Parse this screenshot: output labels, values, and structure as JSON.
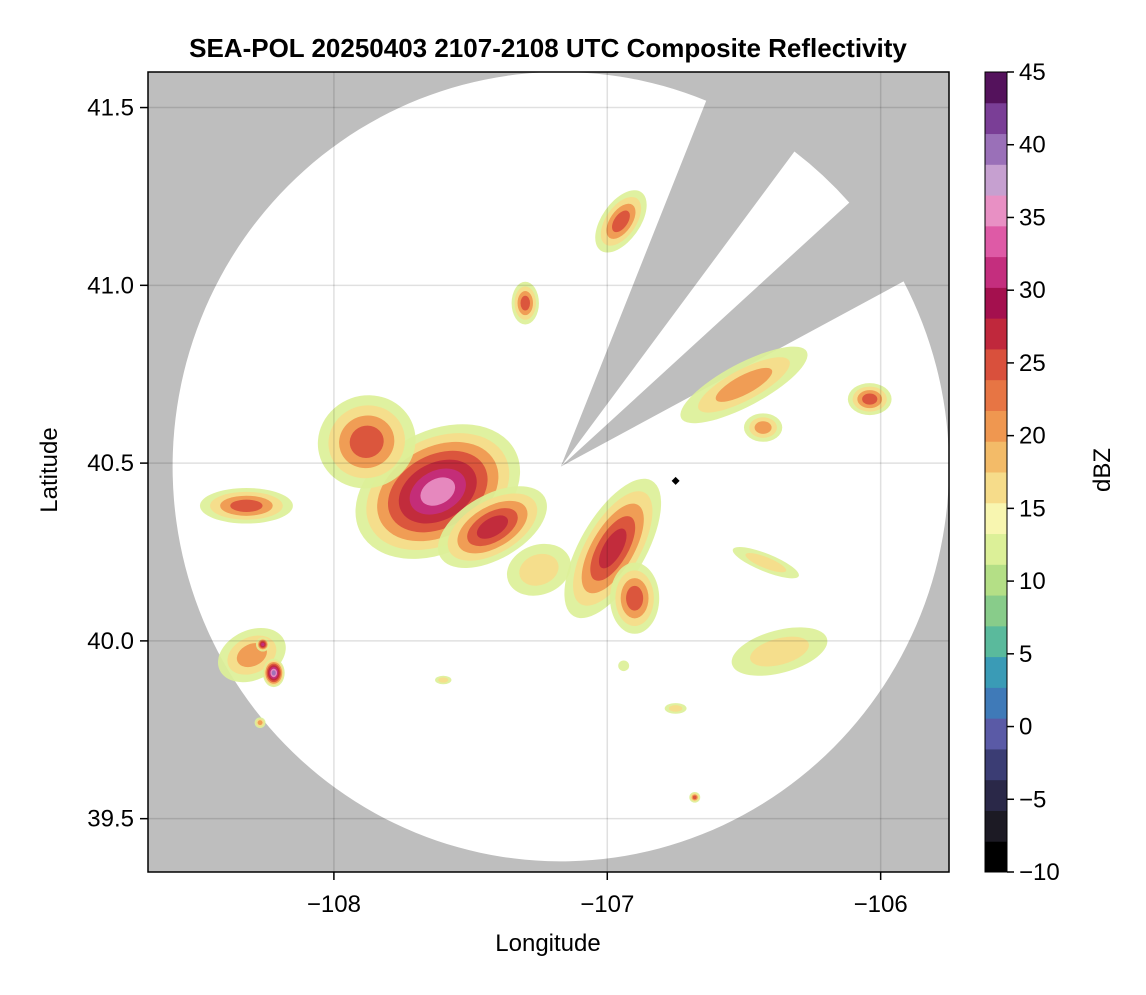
{
  "chart_data": {
    "type": "heatmap",
    "title": "SEA-POL 20250403 2107-2108 UTC Composite Reflectivity",
    "xlabel": "Longitude",
    "ylabel": "Latitude",
    "xlim": [
      -108.68,
      -105.75
    ],
    "ylim": [
      39.35,
      41.6
    ],
    "x_ticks": [
      -108,
      -107,
      -106
    ],
    "x_tick_labels": [
      "−108",
      "−107",
      "−106"
    ],
    "y_ticks": [
      39.5,
      40.0,
      40.5,
      41.0,
      41.5
    ],
    "y_tick_labels": [
      "39.5",
      "40.0",
      "40.5",
      "41.0",
      "41.5"
    ],
    "grid": true,
    "background_color": "#bebebe",
    "no_data_color": "#bebebe",
    "radar": {
      "center_lon": -107.17,
      "center_lat": 40.49,
      "range_deg_lon": 1.42,
      "range_deg_lat": 1.11,
      "blocked_sectors": [
        {
          "from_azimuth_deg": 22,
          "to_azimuth_deg": 37
        },
        {
          "from_azimuth_deg": 48,
          "to_azimuth_deg": 62
        }
      ]
    },
    "colorbar": {
      "label": "dBZ",
      "min": -10,
      "max": 45,
      "step": 2.5,
      "ticks": [
        -10,
        -5,
        0,
        5,
        10,
        15,
        20,
        25,
        30,
        35,
        40,
        45
      ],
      "tick_labels": [
        "−10",
        "−5",
        "0",
        "5",
        "10",
        "15",
        "20",
        "25",
        "30",
        "35",
        "40",
        "45"
      ],
      "colormap": "spectral_reversed_dark",
      "colors": [
        "#000000",
        "#1c1a24",
        "#2a2848",
        "#3b3d74",
        "#5a5aa6",
        "#3f7ab8",
        "#3a9bb6",
        "#5aba9c",
        "#88cc8a",
        "#b4df86",
        "#dcf098",
        "#f8f6b0",
        "#f6dc8a",
        "#f3bb68",
        "#ef9750",
        "#e77544",
        "#d9503c",
        "#c0283c",
        "#a4104e",
        "#c42e7e",
        "#de5aa6",
        "#e890c4",
        "#c6a0d0",
        "#9a70b8",
        "#7a3e96",
        "#54125c"
      ]
    },
    "annotations": [
      {
        "label": "",
        "lon": -106.75,
        "lat": 40.45,
        "marker": "diamond"
      }
    ],
    "echo_cells": [
      {
        "lon": -107.62,
        "lat": 40.42,
        "rlon": 0.32,
        "rlat": 0.17,
        "angle_deg": -28,
        "peak_dbz": 36
      },
      {
        "lon": -107.88,
        "lat": 40.56,
        "rlon": 0.18,
        "rlat": 0.13,
        "angle_deg": -20,
        "peak_dbz": 27
      },
      {
        "lon": -107.42,
        "lat": 40.32,
        "rlon": 0.22,
        "rlat": 0.09,
        "angle_deg": -30,
        "peak_dbz": 30
      },
      {
        "lon": -106.98,
        "lat": 40.26,
        "rlon": 0.12,
        "rlat": 0.22,
        "angle_deg": 30,
        "peak_dbz": 31
      },
      {
        "lon": -106.9,
        "lat": 40.12,
        "rlon": 0.09,
        "rlat": 0.1,
        "angle_deg": 0,
        "peak_dbz": 27
      },
      {
        "lon": -107.25,
        "lat": 40.2,
        "rlon": 0.12,
        "rlat": 0.07,
        "angle_deg": -20,
        "peak_dbz": 19
      },
      {
        "lon": -108.32,
        "lat": 40.38,
        "rlon": 0.17,
        "rlat": 0.05,
        "angle_deg": 0,
        "peak_dbz": 25
      },
      {
        "lon": -108.3,
        "lat": 39.96,
        "rlon": 0.13,
        "rlat": 0.07,
        "angle_deg": -25,
        "peak_dbz": 22
      },
      {
        "lon": -108.22,
        "lat": 39.91,
        "rlon": 0.04,
        "rlat": 0.04,
        "angle_deg": 0,
        "peak_dbz": 40
      },
      {
        "lon": -108.26,
        "lat": 39.99,
        "rlon": 0.025,
        "rlat": 0.02,
        "angle_deg": 0,
        "peak_dbz": 33
      },
      {
        "lon": -106.37,
        "lat": 39.97,
        "rlon": 0.18,
        "rlat": 0.06,
        "angle_deg": -15,
        "peak_dbz": 19
      },
      {
        "lon": -106.42,
        "lat": 40.22,
        "rlon": 0.13,
        "rlat": 0.025,
        "angle_deg": 22,
        "peak_dbz": 18
      },
      {
        "lon": -106.5,
        "lat": 40.72,
        "rlon": 0.26,
        "rlat": 0.06,
        "angle_deg": -28,
        "peak_dbz": 22
      },
      {
        "lon": -106.43,
        "lat": 40.6,
        "rlon": 0.07,
        "rlat": 0.04,
        "angle_deg": 0,
        "peak_dbz": 21
      },
      {
        "lon": -106.04,
        "lat": 40.68,
        "rlon": 0.08,
        "rlat": 0.045,
        "angle_deg": 0,
        "peak_dbz": 25
      },
      {
        "lon": -106.95,
        "lat": 41.18,
        "rlon": 0.07,
        "rlat": 0.1,
        "angle_deg": 35,
        "peak_dbz": 26
      },
      {
        "lon": -107.3,
        "lat": 40.95,
        "rlon": 0.05,
        "rlat": 0.06,
        "angle_deg": 0,
        "peak_dbz": 27
      },
      {
        "lon": -106.75,
        "lat": 39.81,
        "rlon": 0.04,
        "rlat": 0.015,
        "angle_deg": 0,
        "peak_dbz": 17
      },
      {
        "lon": -106.68,
        "lat": 39.56,
        "rlon": 0.02,
        "rlat": 0.015,
        "angle_deg": 0,
        "peak_dbz": 26
      },
      {
        "lon": -108.27,
        "lat": 39.77,
        "rlon": 0.02,
        "rlat": 0.015,
        "angle_deg": 0,
        "peak_dbz": 22
      },
      {
        "lon": -107.6,
        "lat": 39.89,
        "rlon": 0.03,
        "rlat": 0.012,
        "angle_deg": 0,
        "peak_dbz": 18
      },
      {
        "lon": -106.94,
        "lat": 39.93,
        "rlon": 0.02,
        "rlat": 0.015,
        "angle_deg": 0,
        "peak_dbz": 14
      }
    ]
  }
}
